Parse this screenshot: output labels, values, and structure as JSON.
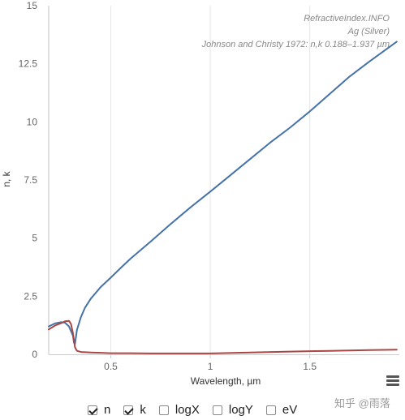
{
  "chart_data": {
    "type": "line",
    "title_lines": [
      "RefractiveIndex.INFO",
      "Ag (Silver)",
      "Johnson and Christy 1972: n,k 0.188–1.937 µm"
    ],
    "xlabel": "Wavelength, µm",
    "ylabel": "n, k",
    "xlim": [
      0.188,
      1.95
    ],
    "ylim": [
      0,
      15
    ],
    "x_ticks": [
      0.5,
      1,
      1.5
    ],
    "x_tick_labels": [
      "0.5",
      "1",
      "1.5"
    ],
    "y_ticks": [
      0,
      2.5,
      5,
      7.5,
      10,
      12.5,
      15
    ],
    "y_tick_labels": [
      "0",
      "2.5",
      "5",
      "7.5",
      "10",
      "12.5",
      "15"
    ],
    "grid": "vertical",
    "series": [
      {
        "name": "k",
        "color": "#4572a7",
        "x": [
          0.188,
          0.22,
          0.25,
          0.27,
          0.29,
          0.31,
          0.315,
          0.32,
          0.33,
          0.35,
          0.37,
          0.4,
          0.45,
          0.5,
          0.55,
          0.6,
          0.7,
          0.8,
          0.9,
          1.0,
          1.1,
          1.2,
          1.3,
          1.4,
          1.5,
          1.6,
          1.7,
          1.8,
          1.937
        ],
        "values": [
          1.2,
          1.33,
          1.38,
          1.36,
          1.2,
          0.8,
          0.5,
          0.45,
          1.05,
          1.6,
          2.0,
          2.4,
          2.9,
          3.3,
          3.72,
          4.12,
          4.85,
          5.6,
          6.32,
          7.0,
          7.7,
          8.4,
          9.1,
          9.75,
          10.45,
          11.2,
          11.95,
          12.6,
          13.45
        ]
      },
      {
        "name": "n",
        "color": "#aa4643",
        "x": [
          0.188,
          0.22,
          0.25,
          0.27,
          0.29,
          0.3,
          0.31,
          0.32,
          0.33,
          0.35,
          0.4,
          0.5,
          0.6,
          0.7,
          0.8,
          1.0,
          1.2,
          1.4,
          1.6,
          1.8,
          1.937
        ],
        "values": [
          1.07,
          1.24,
          1.34,
          1.42,
          1.44,
          1.3,
          0.9,
          0.3,
          0.15,
          0.1,
          0.08,
          0.05,
          0.05,
          0.04,
          0.04,
          0.04,
          0.08,
          0.12,
          0.15,
          0.18,
          0.2
        ]
      }
    ]
  },
  "controls": [
    {
      "label": "n",
      "checked": true
    },
    {
      "label": "k",
      "checked": true
    },
    {
      "label": "logX",
      "checked": false
    },
    {
      "label": "logY",
      "checked": false
    },
    {
      "label": "eV",
      "checked": false
    }
  ],
  "watermark": "知乎 @雨落",
  "menu_icon": "hamburger-menu-icon"
}
